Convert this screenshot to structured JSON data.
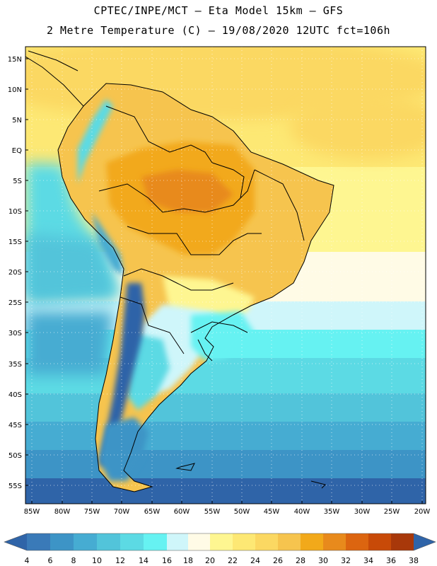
{
  "header": {
    "line1": "CPTEC/INPE/MCT –  Eta Model 15km – GFS",
    "line2": "2 Metre Temperature (C) – 19/08/2020 12UTC fct=106h"
  },
  "map": {
    "lat_labels": [
      "15N",
      "10N",
      "5N",
      "EQ",
      "5S",
      "10S",
      "15S",
      "20S",
      "25S",
      "30S",
      "35S",
      "40S",
      "45S",
      "50S",
      "55S"
    ],
    "lon_labels": [
      "85W",
      "80W",
      "75W",
      "70W",
      "65W",
      "60W",
      "55W",
      "50W",
      "45W",
      "40W",
      "35W",
      "30W",
      "25W",
      "20W"
    ]
  },
  "colorbar": {
    "labels": [
      "4",
      "6",
      "8",
      "10",
      "12",
      "14",
      "16",
      "18",
      "20",
      "22",
      "24",
      "26",
      "28",
      "30",
      "32",
      "34",
      "36",
      "38"
    ],
    "colors": [
      "#2f64a8",
      "#3a7ab8",
      "#3d94c6",
      "#46acd2",
      "#52c4da",
      "#5cdae4",
      "#66f2f2",
      "#cff6fa",
      "#fffbe6",
      "#fef691",
      "#fde874",
      "#fbd862",
      "#f6c44e",
      "#f2a91a",
      "#e88a1c",
      "#dc6510",
      "#c84a08",
      "#a8380a",
      "#2f64a8"
    ]
  }
}
